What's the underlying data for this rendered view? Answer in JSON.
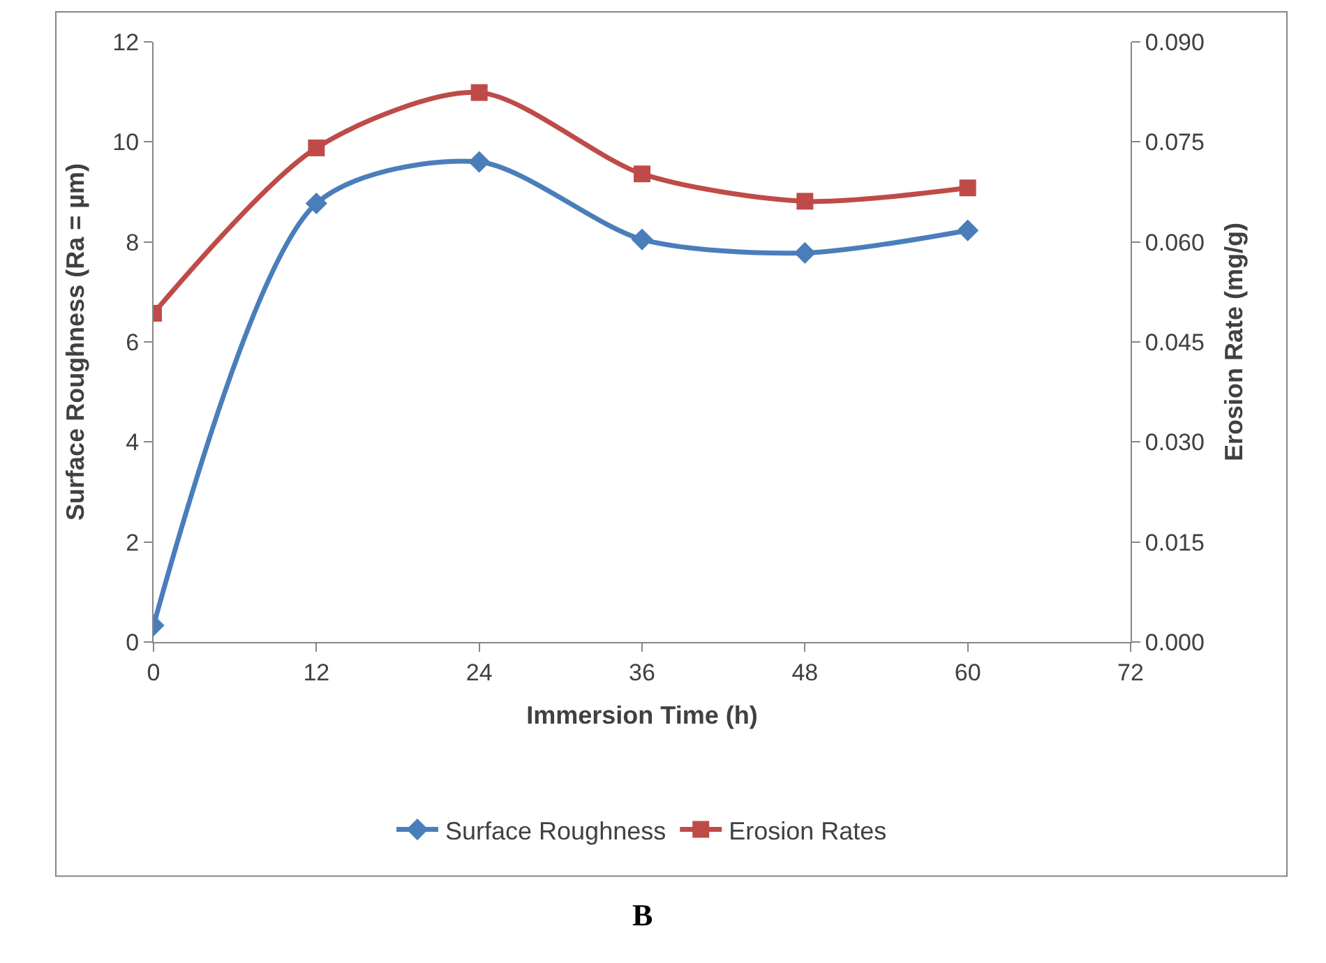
{
  "chart_data": {
    "type": "line",
    "xlabel": "Immersion Time (h)",
    "ylabel": "Surface Roughness (Ra = µm)",
    "y2label": "Erosion Rate (mg/g)",
    "x": [
      0,
      12,
      24,
      36,
      48,
      60
    ],
    "series": [
      {
        "name": "Surface Roughness",
        "color": "#4a7ebb",
        "values": [
          0.33,
          8.77,
          9.6,
          8.05,
          7.78,
          8.23
        ],
        "marker": "diamond"
      },
      {
        "name": "Erosion Rates",
        "color": "#be4b48",
        "values": [
          0.0493,
          0.0741,
          0.0824,
          0.0702,
          0.0661,
          0.0681
        ],
        "marker": "square",
        "axis": "y2"
      }
    ],
    "xlim": [
      0,
      72
    ],
    "xticks": [
      0,
      12,
      24,
      36,
      48,
      60,
      72
    ],
    "ylim": [
      0,
      12
    ],
    "yticks": [
      0,
      2,
      4,
      6,
      8,
      10,
      12
    ],
    "y2lim": [
      0,
      0.09
    ],
    "y2ticks": [
      {
        "value": 0,
        "label": "0.000"
      },
      {
        "value": 0.015,
        "label": "0.015"
      },
      {
        "value": 0.03,
        "label": "0.030"
      },
      {
        "value": 0.045,
        "label": "0.045"
      },
      {
        "value": 0.06,
        "label": "0.060"
      },
      {
        "value": 0.075,
        "label": "0.075"
      },
      {
        "value": 0.09,
        "label": "0.090"
      }
    ],
    "legend": "bottom",
    "line_style": "solid",
    "annotations": [
      "B"
    ]
  }
}
